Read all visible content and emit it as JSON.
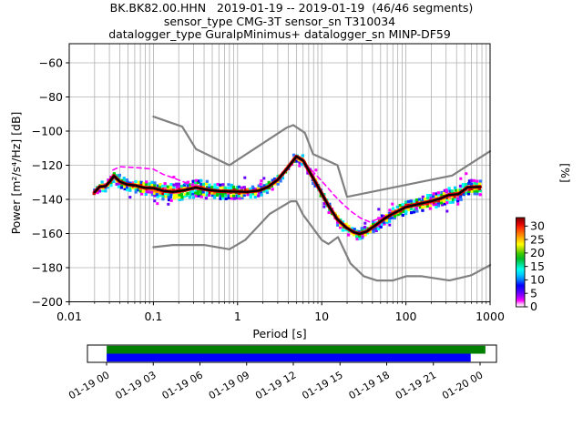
{
  "title": {
    "line1": "BK.BK82.00.HHN   2019-01-19 -- 2019-01-19  (46/46 segments)",
    "line2": "sensor_type CMG-3T sensor_sn T310034",
    "line3": "datalogger_type GuralpMinimus+ datalogger_sn MINP-DF59"
  },
  "axes": {
    "xlabel": "Period [s]",
    "ylabel": "Power [m²/s⁴/Hz] [dB]",
    "right_ylabel": "[%]",
    "xtick_labels": [
      "0.01",
      "0.1",
      "1",
      "10",
      "100",
      "1000"
    ],
    "ytick_labels": [
      "−60",
      "−80",
      "−100",
      "−120",
      "−140",
      "−160",
      "−180",
      "−200"
    ]
  },
  "colorbar": {
    "tick_labels": [
      "30",
      "25",
      "20",
      "15",
      "10",
      "5",
      "0"
    ],
    "tick_values": [
      30,
      25,
      20,
      15,
      10,
      5,
      0
    ],
    "gradient_bottom_to_top": [
      [
        0.0,
        "#ffffff"
      ],
      [
        0.03,
        "#ffbbff"
      ],
      [
        0.07,
        "#ff00ff"
      ],
      [
        0.12,
        "#9900ff"
      ],
      [
        0.18,
        "#4400ff"
      ],
      [
        0.24,
        "#0000ff"
      ],
      [
        0.3,
        "#0077ff"
      ],
      [
        0.36,
        "#00ccff"
      ],
      [
        0.42,
        "#00ffee"
      ],
      [
        0.48,
        "#00dd88"
      ],
      [
        0.54,
        "#00bb22"
      ],
      [
        0.6,
        "#44cc00"
      ],
      [
        0.65,
        "#aadd00"
      ],
      [
        0.7,
        "#ffff00"
      ],
      [
        0.76,
        "#ffbb00"
      ],
      [
        0.82,
        "#ff7700"
      ],
      [
        0.88,
        "#ff3300"
      ],
      [
        0.93,
        "#dd0000"
      ],
      [
        1.0,
        "#7a0000"
      ]
    ]
  },
  "chart_data": {
    "type": "heatmap",
    "title": "BK.BK82.00.HHN   2019-01-19 -- 2019-01-19  (46/46 segments)",
    "subtitle": "sensor_type CMG-3T sensor_sn T310034 / datalogger_type GuralpMinimus+ datalogger_sn MINP-DF59",
    "xlabel": "Period [s]",
    "ylabel": "Power [m²/s⁴/Hz] [dB]",
    "xscale": "log",
    "xlim": [
      0.01,
      1000
    ],
    "ylim": [
      -200,
      -48.8
    ],
    "yticks": [
      -60,
      -80,
      -100,
      -120,
      -140,
      -160,
      -180,
      -200
    ],
    "xticks": [
      0.01,
      0.1,
      1,
      10,
      100,
      1000
    ],
    "grid": true,
    "colorbar": {
      "label": "[%]",
      "ticks": [
        0,
        5,
        10,
        15,
        20,
        25,
        30
      ]
    },
    "series": [
      {
        "name": "mode",
        "color": "#000000",
        "style": "solid",
        "points": [
          [
            0.02,
            -135.8
          ],
          [
            0.023,
            -132.6
          ],
          [
            0.027,
            -132.2
          ],
          [
            0.03,
            -129.8
          ],
          [
            0.034,
            -126.3
          ],
          [
            0.04,
            -129.6
          ],
          [
            0.048,
            -131.2
          ],
          [
            0.06,
            -131.8
          ],
          [
            0.078,
            -133.2
          ],
          [
            0.1,
            -133.4
          ],
          [
            0.13,
            -135.0
          ],
          [
            0.17,
            -135.6
          ],
          [
            0.23,
            -134.7
          ],
          [
            0.32,
            -133.0
          ],
          [
            0.45,
            -134.5
          ],
          [
            0.62,
            -135.2
          ],
          [
            0.9,
            -135.4
          ],
          [
            1.3,
            -135.6
          ],
          [
            1.8,
            -134.8
          ],
          [
            2.3,
            -132.7
          ],
          [
            3.0,
            -128.5
          ],
          [
            3.9,
            -121.8
          ],
          [
            5.0,
            -114.8
          ],
          [
            6.0,
            -117.2
          ],
          [
            7.2,
            -124.0
          ],
          [
            9.0,
            -132.5
          ],
          [
            11.8,
            -143.0
          ],
          [
            15.2,
            -151.5
          ],
          [
            19.5,
            -156.5
          ],
          [
            24,
            -159.2
          ],
          [
            28,
            -160.2
          ],
          [
            34,
            -158.8
          ],
          [
            44,
            -155.0
          ],
          [
            56,
            -151.2
          ],
          [
            68,
            -148.7
          ],
          [
            100,
            -144.5
          ],
          [
            145,
            -142.6
          ],
          [
            200,
            -141.1
          ],
          [
            260,
            -139.4
          ],
          [
            320,
            -137.5
          ],
          [
            420,
            -136.9
          ],
          [
            480,
            -134.9
          ],
          [
            540,
            -132.9
          ],
          [
            760,
            -132.7
          ]
        ]
      },
      {
        "name": "percentile_short_period",
        "color": "#ff00ff",
        "style": "dashed",
        "points": [
          [
            0.033,
            -122.8
          ],
          [
            0.04,
            -120.9
          ],
          [
            0.055,
            -121.2
          ],
          [
            0.075,
            -121.7
          ],
          [
            0.1,
            -122.3
          ],
          [
            0.13,
            -125.3
          ],
          [
            0.17,
            -127.3
          ],
          [
            0.23,
            -129.8
          ],
          [
            0.32,
            -132.3
          ],
          [
            0.45,
            -134.6
          ]
        ]
      },
      {
        "name": "percentile_long_period",
        "color": "#ff00ff",
        "style": "dashed",
        "points": [
          [
            6.5,
            -119.5
          ],
          [
            8.5,
            -125.5
          ],
          [
            11,
            -131.5
          ],
          [
            14,
            -137.5
          ],
          [
            18,
            -143.0
          ],
          [
            23,
            -147.5
          ],
          [
            29,
            -151.0
          ],
          [
            37,
            -153.2
          ],
          [
            47,
            -151.5
          ],
          [
            60,
            -150.2
          ]
        ]
      },
      {
        "name": "NHNM",
        "color": "#808080",
        "style": "solid",
        "points": [
          [
            0.1,
            -91.5
          ],
          [
            0.22,
            -97.4
          ],
          [
            0.32,
            -110.5
          ],
          [
            0.8,
            -120.0
          ],
          [
            3.8,
            -98.1
          ],
          [
            4.6,
            -96.5
          ],
          [
            6.3,
            -101.0
          ],
          [
            7.9,
            -113.5
          ],
          [
            15.4,
            -120.0
          ],
          [
            20.0,
            -138.5
          ],
          [
            354.8,
            -126.0
          ],
          [
            1000,
            -111.8
          ]
        ]
      },
      {
        "name": "NLNM",
        "color": "#808080",
        "style": "solid",
        "points": [
          [
            0.1,
            -168.0
          ],
          [
            0.17,
            -166.7
          ],
          [
            0.4,
            -166.7
          ],
          [
            0.8,
            -169.2
          ],
          [
            1.24,
            -163.7
          ],
          [
            2.4,
            -148.6
          ],
          [
            4.3,
            -141.1
          ],
          [
            5.0,
            -141.1
          ],
          [
            6.0,
            -149.0
          ],
          [
            10.0,
            -163.8
          ],
          [
            12.0,
            -166.2
          ],
          [
            15.6,
            -162.1
          ],
          [
            21.9,
            -177.5
          ],
          [
            31.6,
            -185.0
          ],
          [
            45.0,
            -187.5
          ],
          [
            70.0,
            -187.5
          ],
          [
            101.0,
            -185.0
          ],
          [
            154.0,
            -185.0
          ],
          [
            328.0,
            -187.5
          ],
          [
            600.0,
            -184.4
          ],
          [
            1000,
            -178.5
          ]
        ]
      }
    ],
    "band_halfwidth_db": [
      [
        0.02,
        2.0
      ],
      [
        0.034,
        3.0
      ],
      [
        0.05,
        3.3
      ],
      [
        0.1,
        4.3
      ],
      [
        0.2,
        5.2
      ],
      [
        0.35,
        5.0
      ],
      [
        0.6,
        4.2
      ],
      [
        1.2,
        3.6
      ],
      [
        2.2,
        3.0
      ],
      [
        3.5,
        2.6
      ],
      [
        5,
        2.3
      ],
      [
        7,
        2.6
      ],
      [
        10,
        3.0
      ],
      [
        20,
        3.0
      ],
      [
        30,
        3.2
      ],
      [
        60,
        3.4
      ],
      [
        120,
        3.8
      ],
      [
        300,
        4.2
      ],
      [
        760,
        4.2
      ]
    ],
    "coverage_timeline": {
      "tick_labels": [
        "01-19 00",
        "01-19 03",
        "01-19 06",
        "01-19 09",
        "01-19 12",
        "01-19 15",
        "01-19 18",
        "01-19 21",
        "01-20 00"
      ],
      "bars": [
        {
          "name": "data-coverage",
          "color": "#007f00",
          "start_frac": 0.047,
          "end_frac": 0.973
        },
        {
          "name": "used-segments",
          "color": "#0000ff",
          "start_frac": 0.047,
          "end_frac": 0.937
        }
      ]
    }
  }
}
